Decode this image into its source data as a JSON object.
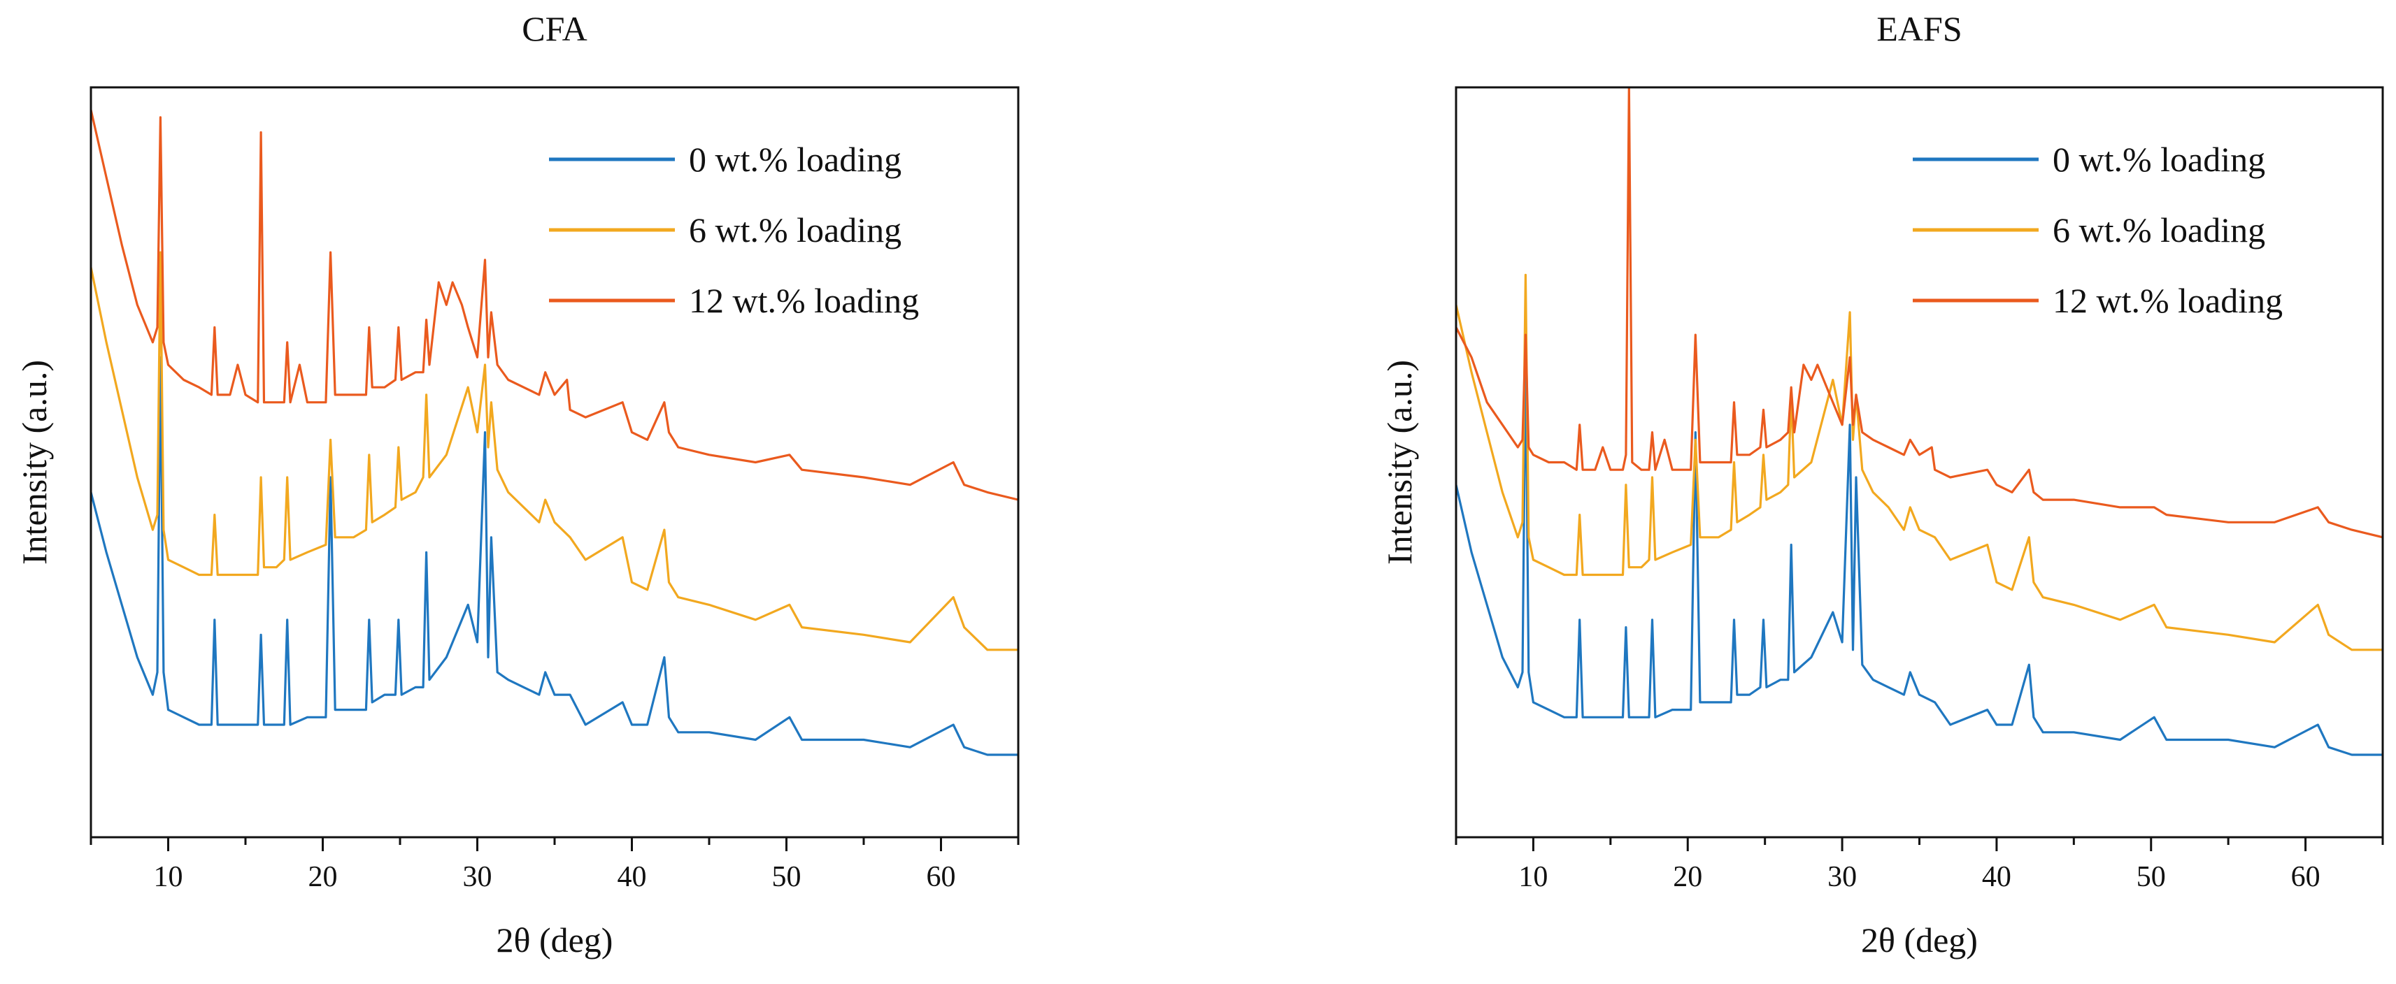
{
  "chart_data": [
    {
      "type": "line",
      "title": "CFA",
      "xlabel": "2θ (deg)",
      "ylabel": "Intensity (a.u.)",
      "xlim": [
        5,
        65
      ],
      "ylim": [
        0,
        100
      ],
      "x_ticks": [
        10,
        20,
        30,
        40,
        50,
        60
      ],
      "x_tick_labels": [
        "10",
        "20",
        "30",
        "40",
        "50",
        "60"
      ],
      "y_tick_labels": [],
      "legend_position": "top-right",
      "series": [
        {
          "name": "0 wt.% loading",
          "color": "#1f77c0",
          "x": [
            5,
            6,
            7,
            8,
            9,
            9.3,
            9.5,
            9.7,
            10,
            11,
            12,
            12.8,
            13,
            13.2,
            14,
            15,
            15.8,
            16,
            16.2,
            17,
            17.5,
            17.7,
            17.9,
            19,
            20.2,
            20.5,
            20.8,
            22,
            22.8,
            23,
            23.2,
            24,
            24.7,
            24.9,
            25.1,
            26,
            26.5,
            26.7,
            26.9,
            28,
            29.4,
            30,
            30.5,
            30.7,
            30.9,
            31.3,
            32,
            33,
            34,
            34.4,
            35,
            36,
            37,
            39.4,
            40,
            41,
            42.1,
            42.4,
            43,
            45,
            48,
            50.2,
            51,
            55,
            58,
            60.8,
            61.5,
            63,
            65
          ],
          "y": [
            46,
            38,
            31,
            24,
            19,
            22,
            64,
            22,
            17,
            16,
            15,
            15,
            29,
            15,
            15,
            15,
            15,
            27,
            15,
            15,
            15,
            29,
            15,
            16,
            16,
            48,
            17,
            17,
            17,
            29,
            18,
            19,
            19,
            29,
            19,
            20,
            20,
            38,
            21,
            24,
            31,
            26,
            54,
            24,
            40,
            22,
            21,
            20,
            19,
            22,
            19,
            19,
            15,
            18,
            15,
            15,
            24,
            16,
            14,
            14,
            13,
            16,
            13,
            13,
            12,
            15,
            12,
            11,
            11
          ]
        },
        {
          "name": "6 wt.% loading",
          "color": "#f2a81f",
          "x": [
            5,
            6,
            7,
            8,
            9,
            9.3,
            9.5,
            9.7,
            10,
            11,
            12,
            12.8,
            13,
            13.2,
            14,
            15,
            15.8,
            16,
            16.2,
            17,
            17.5,
            17.7,
            17.9,
            19,
            20.2,
            20.5,
            20.8,
            22,
            22.8,
            23,
            23.2,
            24,
            24.7,
            24.9,
            25.1,
            26,
            26.5,
            26.7,
            26.9,
            28,
            29.4,
            30,
            30.5,
            30.7,
            30.9,
            31.3,
            32,
            33,
            34,
            34.4,
            35,
            36,
            37,
            39.4,
            40,
            41,
            42.1,
            42.4,
            43,
            45,
            48,
            50.2,
            51,
            55,
            58,
            60.8,
            61.5,
            63,
            65
          ],
          "y": [
            76,
            66,
            57,
            48,
            41,
            43,
            78,
            41,
            37,
            36,
            35,
            35,
            43,
            35,
            35,
            35,
            35,
            48,
            36,
            36,
            37,
            48,
            37,
            38,
            39,
            53,
            40,
            40,
            41,
            51,
            42,
            43,
            44,
            52,
            45,
            46,
            48,
            59,
            48,
            51,
            60,
            54,
            63,
            52,
            58,
            49,
            46,
            44,
            42,
            45,
            42,
            40,
            37,
            40,
            34,
            33,
            41,
            34,
            32,
            31,
            29,
            31,
            28,
            27,
            26,
            32,
            28,
            25,
            25
          ]
        },
        {
          "name": "12 wt.% loading",
          "color": "#ea5a1e",
          "x": [
            5,
            6,
            7,
            8,
            9,
            9.3,
            9.5,
            9.7,
            10,
            11,
            12,
            12.8,
            13,
            13.2,
            14,
            14.5,
            15,
            15.8,
            16,
            16.2,
            17,
            17.5,
            17.7,
            17.9,
            18.5,
            19,
            20.2,
            20.5,
            20.8,
            22,
            22.8,
            23,
            23.2,
            24,
            24.7,
            24.9,
            25.1,
            26,
            26.5,
            26.7,
            26.9,
            27.5,
            28,
            28.4,
            29,
            29.4,
            30,
            30.5,
            30.7,
            30.9,
            31.3,
            32,
            33,
            34,
            34.4,
            35,
            35.8,
            36,
            37,
            39.4,
            40,
            41,
            42.1,
            42.4,
            43,
            45,
            48,
            50.2,
            51,
            55,
            58,
            60.8,
            61.5,
            63,
            65
          ],
          "y": [
            97,
            88,
            79,
            71,
            66,
            68,
            96,
            66,
            63,
            61,
            60,
            59,
            68,
            59,
            59,
            63,
            59,
            58,
            94,
            58,
            58,
            58,
            66,
            58,
            63,
            58,
            58,
            78,
            59,
            59,
            59,
            68,
            60,
            60,
            61,
            68,
            61,
            62,
            62,
            69,
            63,
            74,
            71,
            74,
            71,
            68,
            64,
            77,
            64,
            70,
            63,
            61,
            60,
            59,
            62,
            59,
            61,
            57,
            56,
            58,
            54,
            53,
            58,
            54,
            52,
            51,
            50,
            51,
            49,
            48,
            47,
            50,
            47,
            46,
            45
          ]
        }
      ]
    },
    {
      "type": "line",
      "title": "EAFS",
      "xlabel": "2θ (deg)",
      "ylabel": "Intensity (a.u.)",
      "xlim": [
        5,
        65
      ],
      "ylim": [
        0,
        100
      ],
      "x_ticks": [
        10,
        20,
        30,
        40,
        50,
        60
      ],
      "x_tick_labels": [
        "10",
        "20",
        "30",
        "40",
        "50",
        "60"
      ],
      "y_tick_labels": [],
      "legend_position": "top-right",
      "series": [
        {
          "name": "0 wt.% loading",
          "color": "#1f77c0",
          "x": [
            5,
            6,
            7,
            8,
            9,
            9.3,
            9.5,
            9.7,
            10,
            11,
            12,
            12.8,
            13,
            13.2,
            14,
            15,
            15.8,
            16,
            16.2,
            17,
            17.5,
            17.7,
            17.9,
            19,
            20.2,
            20.5,
            20.8,
            22,
            22.8,
            23,
            23.2,
            24,
            24.7,
            24.9,
            25.1,
            26,
            26.5,
            26.7,
            26.9,
            28,
            29.4,
            30,
            30.5,
            30.7,
            30.9,
            31.3,
            32,
            33,
            34,
            34.4,
            35,
            36,
            37,
            39.4,
            40,
            41,
            42.1,
            42.4,
            43,
            45,
            48,
            50.2,
            51,
            55,
            58,
            60.8,
            61.5,
            63,
            65
          ],
          "y": [
            47,
            38,
            31,
            24,
            20,
            22,
            65,
            22,
            18,
            17,
            16,
            16,
            29,
            16,
            16,
            16,
            16,
            28,
            16,
            16,
            16,
            29,
            16,
            17,
            17,
            54,
            18,
            18,
            18,
            29,
            19,
            19,
            20,
            29,
            20,
            21,
            21,
            39,
            22,
            24,
            30,
            26,
            55,
            25,
            48,
            23,
            21,
            20,
            19,
            22,
            19,
            18,
            15,
            17,
            15,
            15,
            23,
            16,
            14,
            14,
            13,
            16,
            13,
            13,
            12,
            15,
            12,
            11,
            11
          ]
        },
        {
          "name": "6 wt.% loading",
          "color": "#f2a81f",
          "x": [
            5,
            6,
            7,
            8,
            9,
            9.3,
            9.5,
            9.7,
            10,
            11,
            12,
            12.8,
            13,
            13.2,
            14,
            15,
            15.8,
            16,
            16.2,
            17,
            17.5,
            17.7,
            17.9,
            19,
            20.2,
            20.5,
            20.8,
            22,
            22.8,
            23,
            23.2,
            24,
            24.7,
            24.9,
            25.1,
            26,
            26.5,
            26.7,
            26.9,
            28,
            29.4,
            30,
            30.5,
            30.7,
            30.9,
            31.3,
            32,
            33,
            34,
            34.4,
            35,
            36,
            37,
            39.4,
            40,
            41,
            42.1,
            42.4,
            43,
            45,
            48,
            50.2,
            51,
            55,
            58,
            60.8,
            61.5,
            63,
            65
          ],
          "y": [
            71,
            62,
            54,
            46,
            40,
            42,
            75,
            40,
            37,
            36,
            35,
            35,
            43,
            35,
            35,
            35,
            35,
            47,
            36,
            36,
            37,
            48,
            37,
            38,
            39,
            53,
            40,
            40,
            41,
            50,
            42,
            43,
            44,
            51,
            45,
            46,
            47,
            59,
            48,
            50,
            61,
            55,
            70,
            53,
            59,
            49,
            46,
            44,
            41,
            44,
            41,
            40,
            37,
            39,
            34,
            33,
            40,
            34,
            32,
            31,
            29,
            31,
            28,
            27,
            26,
            31,
            27,
            25,
            25
          ]
        },
        {
          "name": "12 wt.% loading",
          "color": "#ea5a1e",
          "x": [
            5,
            6,
            7,
            8,
            9,
            9.3,
            9.5,
            9.7,
            10,
            11,
            12,
            12.8,
            13,
            13.2,
            14,
            14.5,
            15,
            15.8,
            16,
            16.2,
            16.4,
            17,
            17.5,
            17.7,
            17.9,
            18.5,
            19,
            20.2,
            20.5,
            20.8,
            22,
            22.8,
            23,
            23.2,
            24,
            24.7,
            24.9,
            25.1,
            26,
            26.5,
            26.7,
            26.9,
            27.5,
            28,
            28.4,
            29,
            29.4,
            30,
            30.5,
            30.7,
            30.9,
            31.3,
            32,
            33,
            34,
            34.4,
            35,
            35.8,
            36,
            37,
            39.4,
            40,
            41,
            42.1,
            42.4,
            43,
            45,
            48,
            50.2,
            51,
            55,
            58,
            60.8,
            61.5,
            63,
            65
          ],
          "y": [
            68,
            64,
            58,
            55,
            52,
            53,
            67,
            52,
            51,
            50,
            50,
            49,
            55,
            49,
            49,
            52,
            49,
            49,
            51,
            100,
            50,
            49,
            49,
            54,
            49,
            53,
            49,
            49,
            67,
            50,
            50,
            50,
            58,
            51,
            51,
            52,
            57,
            52,
            53,
            54,
            60,
            54,
            63,
            61,
            63,
            60,
            58,
            55,
            64,
            55,
            59,
            54,
            53,
            52,
            51,
            53,
            51,
            52,
            49,
            48,
            49,
            47,
            46,
            49,
            46,
            45,
            45,
            44,
            44,
            43,
            42,
            42,
            44,
            42,
            41,
            40
          ]
        }
      ]
    }
  ]
}
